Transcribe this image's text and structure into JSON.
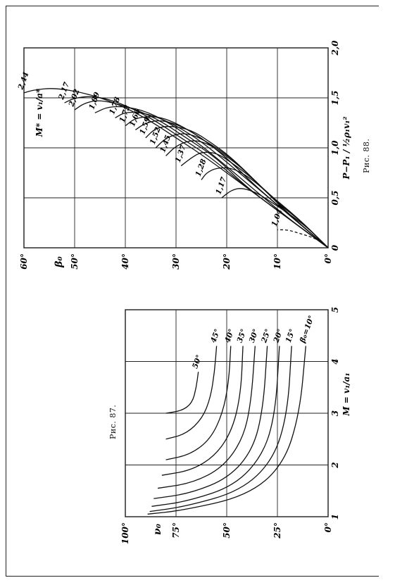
{
  "captions": {
    "fig88": "Рис. 88.",
    "fig87": "Рис. 87."
  },
  "chart_data": [
    {
      "type": "line",
      "figure": "Рис. 88",
      "xlabel": "P−P₁ / ½ρ₁v₁²",
      "ylabel": "β₀",
      "legend_title": "M* = v₁/a*",
      "xlim": [
        0,
        2.0
      ],
      "ylim": [
        0,
        60
      ],
      "x_ticks": [
        "0",
        "0,5",
        "1,0",
        "1,5",
        "2,0"
      ],
      "y_ticks": [
        "0°",
        "10°",
        "20°",
        "30°",
        "40°",
        "50°",
        "60°"
      ],
      "series_labels": [
        "2,44",
        "2,17",
        "2,02",
        "1,89",
        "1,78",
        "1,72",
        "1,66",
        "1,59",
        "1,52",
        "1,45",
        "1,37",
        "1,28",
        "1,17",
        "1,041"
      ],
      "series": [
        {
          "name": "2,44",
          "x": [
            0,
            0.3,
            0.6,
            0.9,
            1.1,
            1.3,
            1.45,
            1.55,
            1.6,
            1.58,
            1.55
          ],
          "y": [
            0,
            8,
            16,
            24,
            30,
            36,
            42,
            48,
            54,
            58,
            60
          ]
        },
        {
          "name": "2,17",
          "x": [
            0,
            0.3,
            0.6,
            0.9,
            1.1,
            1.3,
            1.45,
            1.52,
            1.5,
            1.45
          ],
          "y": [
            0,
            8,
            16,
            23,
            29,
            35,
            41,
            46,
            50,
            52
          ]
        },
        {
          "name": "2,02",
          "x": [
            0,
            0.3,
            0.6,
            0.9,
            1.1,
            1.3,
            1.42,
            1.48,
            1.45,
            1.38
          ],
          "y": [
            0,
            8,
            16,
            22,
            28,
            34,
            40,
            45,
            48,
            50
          ]
        },
        {
          "name": "1,89",
          "x": [
            0,
            0.3,
            0.6,
            0.9,
            1.1,
            1.3,
            1.4,
            1.42,
            1.35
          ],
          "y": [
            0,
            8,
            15,
            22,
            27,
            33,
            38,
            43,
            46
          ]
        },
        {
          "name": "1,78",
          "x": [
            0,
            0.3,
            0.6,
            0.9,
            1.1,
            1.25,
            1.35,
            1.36,
            1.3
          ],
          "y": [
            0,
            7,
            14,
            21,
            26,
            31,
            36,
            40,
            42
          ]
        },
        {
          "name": "1,72",
          "x": [
            0,
            0.3,
            0.6,
            0.9,
            1.1,
            1.25,
            1.32,
            1.3,
            1.22
          ],
          "y": [
            0,
            7,
            14,
            20,
            25,
            30,
            34,
            38,
            40
          ]
        },
        {
          "name": "1,66",
          "x": [
            0,
            0.3,
            0.6,
            0.9,
            1.1,
            1.22,
            1.28,
            1.25,
            1.18
          ],
          "y": [
            0,
            7,
            14,
            20,
            25,
            29,
            33,
            36,
            38
          ]
        },
        {
          "name": "1,59",
          "x": [
            0,
            0.3,
            0.6,
            0.9,
            1.05,
            1.18,
            1.22,
            1.2,
            1.1
          ],
          "y": [
            0,
            7,
            13,
            19,
            23,
            27,
            31,
            34,
            36
          ]
        },
        {
          "name": "1,52",
          "x": [
            0,
            0.3,
            0.6,
            0.85,
            1.0,
            1.12,
            1.15,
            1.1,
            1.0
          ],
          "y": [
            0,
            7,
            13,
            18,
            22,
            26,
            29,
            32,
            34
          ]
        },
        {
          "name": "1,45",
          "x": [
            0,
            0.3,
            0.55,
            0.8,
            0.95,
            1.05,
            1.08,
            1.02,
            0.92
          ],
          "y": [
            0,
            6,
            12,
            17,
            21,
            24,
            27,
            30,
            32
          ]
        },
        {
          "name": "1,37",
          "x": [
            0,
            0.3,
            0.5,
            0.7,
            0.85,
            0.95,
            0.96,
            0.9,
            0.82
          ],
          "y": [
            0,
            6,
            11,
            15,
            19,
            22,
            25,
            27,
            29
          ]
        },
        {
          "name": "1,28",
          "x": [
            0,
            0.25,
            0.45,
            0.6,
            0.72,
            0.8,
            0.8,
            0.75,
            0.68
          ],
          "y": [
            0,
            5,
            10,
            13,
            16,
            19,
            22,
            24,
            25
          ]
        },
        {
          "name": "1,17",
          "x": [
            0,
            0.2,
            0.35,
            0.45,
            0.55,
            0.6,
            0.58,
            0.5
          ],
          "y": [
            0,
            4,
            8,
            11,
            14,
            17,
            19,
            21
          ]
        },
        {
          "name": "1,041",
          "x": [
            0,
            0.08,
            0.12,
            0.15,
            0.18,
            0.18
          ],
          "y": [
            0,
            2,
            4,
            6,
            8,
            10
          ]
        }
      ]
    },
    {
      "type": "line",
      "figure": "Рис. 87",
      "xlabel": "M = v₁/a₁",
      "ylabel": "ν₀",
      "legend_title": "β₀ =",
      "xlim": [
        1,
        5
      ],
      "ylim": [
        0,
        100
      ],
      "x_ticks": [
        "1",
        "2",
        "3",
        "4",
        "5"
      ],
      "y_ticks": [
        "0°",
        "25°",
        "50°",
        "75°",
        "100°"
      ],
      "series_labels": [
        "50°",
        "45°",
        "40°",
        "35°",
        "30°",
        "25°",
        "20°",
        "15°",
        "β₀=10°"
      ],
      "series": [
        {
          "name": "50°",
          "x": [
            3.0,
            3.05,
            3.2,
            3.5,
            3.8
          ],
          "y": [
            80,
            72,
            67,
            65,
            64
          ]
        },
        {
          "name": "45°",
          "x": [
            2.5,
            2.6,
            2.9,
            3.3,
            3.8,
            4.3
          ],
          "y": [
            80,
            70,
            62,
            58,
            56,
            55
          ]
        },
        {
          "name": "40°",
          "x": [
            2.1,
            2.2,
            2.5,
            3.0,
            3.6,
            4.3
          ],
          "y": [
            80,
            68,
            58,
            52,
            49,
            48
          ]
        },
        {
          "name": "35°",
          "x": [
            1.8,
            1.9,
            2.2,
            2.7,
            3.4,
            4.3
          ],
          "y": [
            82,
            67,
            55,
            47,
            43,
            42
          ]
        },
        {
          "name": "30°",
          "x": [
            1.55,
            1.65,
            1.95,
            2.5,
            3.2,
            4.3
          ],
          "y": [
            84,
            67,
            52,
            42,
            38,
            36
          ]
        },
        {
          "name": "25°",
          "x": [
            1.35,
            1.45,
            1.75,
            2.3,
            3.1,
            4.3
          ],
          "y": [
            86,
            68,
            49,
            37,
            32,
            30
          ]
        },
        {
          "name": "20°",
          "x": [
            1.2,
            1.3,
            1.6,
            2.2,
            3.0,
            4.3
          ],
          "y": [
            87,
            69,
            46,
            32,
            26,
            24
          ]
        },
        {
          "name": "15°",
          "x": [
            1.1,
            1.2,
            1.5,
            2.1,
            3.0,
            4.3
          ],
          "y": [
            88,
            70,
            43,
            27,
            20,
            18
          ]
        },
        {
          "name": "β₀=10°",
          "x": [
            1.05,
            1.12,
            1.4,
            2.0,
            3.0,
            4.3
          ],
          "y": [
            89,
            72,
            40,
            22,
            14,
            11
          ]
        }
      ]
    }
  ]
}
